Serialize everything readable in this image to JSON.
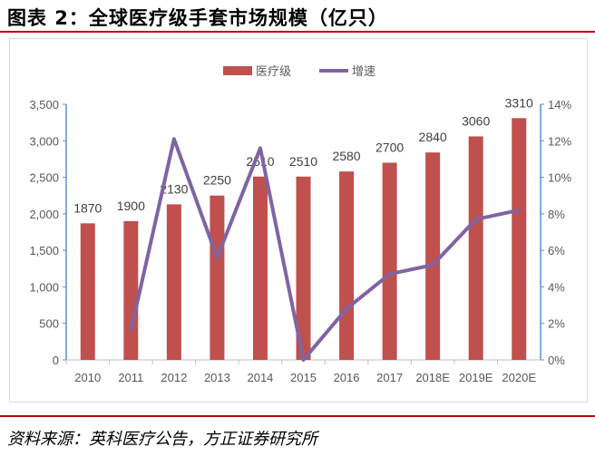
{
  "title": "图表 2：全球医疗级手套市场规模（亿只）",
  "source": "资料来源：英科医疗公告，方正证券研究所",
  "chart_data": {
    "type": "bar+line",
    "categories": [
      "2010",
      "2011",
      "2012",
      "2013",
      "2014",
      "2015",
      "2016",
      "2017",
      "2018E",
      "2019E",
      "2020E"
    ],
    "series": [
      {
        "name": "医疗级",
        "type": "bar",
        "axis": "left",
        "color": "#c0504d",
        "values": [
          1870,
          1900,
          2130,
          2250,
          2510,
          2510,
          2580,
          2700,
          2840,
          3060,
          3310
        ],
        "labels": [
          "1870",
          "1900",
          "2130",
          "2250",
          "2510",
          "2510",
          "2580",
          "2700",
          "2840",
          "3060",
          "3310"
        ]
      },
      {
        "name": "增速",
        "type": "line",
        "axis": "right",
        "color": "#8064a2",
        "values": [
          null,
          1.6,
          12.1,
          5.6,
          11.6,
          0.0,
          2.8,
          4.7,
          5.2,
          7.7,
          8.2
        ]
      }
    ],
    "left_axis": {
      "min": 0,
      "max": 3500,
      "step": 500,
      "ticks": [
        "0",
        "500",
        "1,000",
        "1,500",
        "2,000",
        "2,500",
        "3,000",
        "3,500"
      ]
    },
    "right_axis": {
      "min": 0,
      "max": 14,
      "step": 2,
      "ticks": [
        "0%",
        "2%",
        "4%",
        "6%",
        "8%",
        "10%",
        "12%",
        "14%"
      ]
    },
    "legend": "top-center"
  }
}
